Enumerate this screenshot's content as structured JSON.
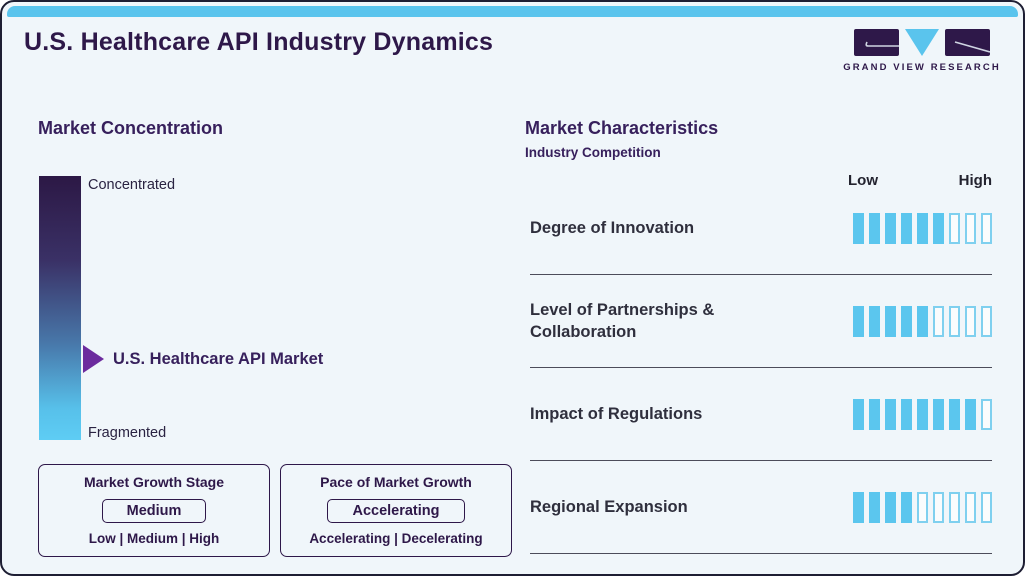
{
  "page": {
    "title": "U.S. Healthcare API Industry Dynamics"
  },
  "logo": {
    "brand": "GRAND VIEW RESEARCH"
  },
  "colors": {
    "accent_blue": "#5ac4ed",
    "dark_purple": "#2e1849",
    "heading_purple": "#37205c",
    "arrow_purple": "#6c2b9e",
    "text_dark": "#2f2f3d",
    "background": "#f0f6fa"
  },
  "market_concentration": {
    "heading": "Market Concentration",
    "scale_top": "Concentrated",
    "scale_bottom": "Fragmented",
    "pointer_label": "U.S. Healthcare API Market",
    "growth_stage": {
      "title": "Market Growth Stage",
      "selected": "Medium",
      "options_text": "Low | Medium | High"
    },
    "growth_pace": {
      "title": "Pace of Market Growth",
      "selected": "Accelerating",
      "options_text": "Accelerating | Decelerating"
    }
  },
  "market_characteristics": {
    "heading": "Market Characteristics",
    "subtitle": "Industry Competition",
    "scale_low": "Low",
    "scale_high": "High",
    "rows": [
      {
        "label": "Degree of Innovation",
        "filled": 6,
        "total": 9
      },
      {
        "label": "Level of Partnerships & Collaboration",
        "filled": 5,
        "total": 9
      },
      {
        "label": "Impact of Regulations",
        "filled": 8,
        "total": 9
      },
      {
        "label": "Regional Expansion",
        "filled": 4,
        "total": 9
      }
    ]
  },
  "chart_data": [
    {
      "type": "scatter",
      "title": "Market Concentration",
      "axis_labels": [
        "Fragmented",
        "Concentrated"
      ],
      "marker_label": "U.S. Healthcare API Market",
      "marker_position_pct_from_concentrated": 69,
      "legend_position": "none"
    },
    {
      "type": "bar",
      "title": "Market Characteristics",
      "subtitle": "Industry Competition",
      "categories": [
        "Degree of Innovation",
        "Level of Partnerships & Collaboration",
        "Impact of Regulations",
        "Regional Expansion"
      ],
      "values": [
        6,
        5,
        8,
        4
      ],
      "ylim": [
        0,
        9
      ],
      "xlabel": "",
      "ylabel": "",
      "scale_min_label": "Low",
      "scale_max_label": "High"
    },
    {
      "type": "table",
      "title": "Market Growth Stage",
      "selected": "Medium",
      "options": [
        "Low",
        "Medium",
        "High"
      ]
    },
    {
      "type": "table",
      "title": "Pace of Market Growth",
      "selected": "Accelerating",
      "options": [
        "Accelerating",
        "Decelerating"
      ]
    }
  ]
}
